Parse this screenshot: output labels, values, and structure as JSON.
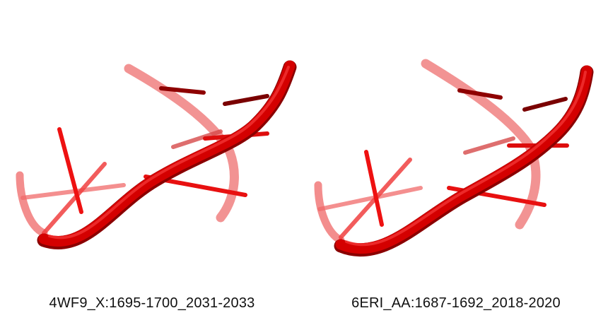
{
  "colors": {
    "background": "#ffffff",
    "backbone": "#d40000",
    "backbone_shadow": "#8a0000",
    "base_bright": "#ee1111",
    "base_dark": "#8e0000",
    "faded_strand": "#f08080",
    "caption_text": "#111111"
  },
  "panels": [
    {
      "caption": "4WF9_X:1695-1700_2031-2033"
    },
    {
      "caption": "6ERI_AA:1687-1692_2018-2020"
    }
  ]
}
